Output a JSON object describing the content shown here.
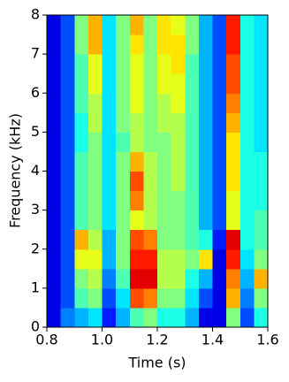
{
  "chart_data": {
    "type": "heatmap",
    "xlabel": "Time (s)",
    "ylabel": "Frequency (kHz)",
    "xlim": [
      0.8,
      1.6
    ],
    "ylim": [
      0,
      8
    ],
    "xticks": [
      0.8,
      {
        "value": 1,
        "label": "1.0"
      },
      1.2,
      1.4,
      1.6
    ],
    "yticks": [
      0,
      1,
      2,
      3,
      4,
      5,
      6,
      7,
      8
    ],
    "colormap": "jet",
    "zlim": [
      0,
      1
    ],
    "xbins": [
      0.8,
      0.85,
      0.9,
      0.95,
      1,
      1.05,
      1.1,
      1.15,
      1.2,
      1.25,
      1.3,
      1.35,
      1.4,
      1.45,
      1.5,
      1.55,
      1.6
    ],
    "ybins": [
      0,
      0.5,
      1,
      1.5,
      2,
      2.5,
      3,
      3.5,
      4,
      4.5,
      5,
      5.5,
      6,
      6.5,
      7,
      7.5,
      8
    ],
    "z": [
      [
        0.1,
        0.25,
        0.3,
        0.35,
        0.15,
        0.3,
        0.45,
        0.5,
        0.4,
        0.4,
        0.3,
        0.1,
        0.1,
        0.5,
        0.2,
        0.4
      ],
      [
        0.1,
        0.2,
        0.45,
        0.5,
        0.2,
        0.35,
        0.8,
        0.75,
        0.5,
        0.5,
        0.35,
        0.2,
        0.1,
        0.7,
        0.25,
        0.5
      ],
      [
        0.1,
        0.2,
        0.5,
        0.55,
        0.25,
        0.45,
        0.9,
        0.9,
        0.55,
        0.55,
        0.4,
        0.3,
        0.1,
        0.75,
        0.3,
        0.7
      ],
      [
        0.1,
        0.2,
        0.6,
        0.6,
        0.3,
        0.5,
        0.85,
        0.85,
        0.55,
        0.55,
        0.5,
        0.65,
        0.1,
        0.85,
        0.35,
        0.5
      ],
      [
        0.1,
        0.2,
        0.7,
        0.55,
        0.3,
        0.5,
        0.8,
        0.75,
        0.5,
        0.5,
        0.45,
        0.4,
        0.15,
        0.9,
        0.4,
        0.45
      ],
      [
        0.1,
        0.2,
        0.45,
        0.5,
        0.35,
        0.5,
        0.6,
        0.55,
        0.5,
        0.5,
        0.45,
        0.3,
        0.2,
        0.6,
        0.4,
        0.45
      ],
      [
        0.1,
        0.2,
        0.45,
        0.5,
        0.35,
        0.5,
        0.75,
        0.55,
        0.5,
        0.5,
        0.45,
        0.3,
        0.2,
        0.6,
        0.4,
        0.4
      ],
      [
        0.1,
        0.2,
        0.45,
        0.5,
        0.35,
        0.5,
        0.8,
        0.55,
        0.5,
        0.55,
        0.45,
        0.3,
        0.2,
        0.65,
        0.4,
        0.4
      ],
      [
        0.1,
        0.2,
        0.45,
        0.5,
        0.35,
        0.5,
        0.7,
        0.55,
        0.5,
        0.55,
        0.45,
        0.3,
        0.2,
        0.65,
        0.4,
        0.4
      ],
      [
        0.1,
        0.2,
        0.4,
        0.5,
        0.35,
        0.45,
        0.55,
        0.5,
        0.5,
        0.55,
        0.45,
        0.3,
        0.2,
        0.65,
        0.4,
        0.35
      ],
      [
        0.1,
        0.2,
        0.4,
        0.55,
        0.35,
        0.5,
        0.55,
        0.5,
        0.55,
        0.55,
        0.45,
        0.3,
        0.2,
        0.7,
        0.4,
        0.35
      ],
      [
        0.1,
        0.2,
        0.45,
        0.55,
        0.35,
        0.5,
        0.6,
        0.5,
        0.55,
        0.6,
        0.45,
        0.3,
        0.2,
        0.75,
        0.4,
        0.35
      ],
      [
        0.1,
        0.2,
        0.45,
        0.6,
        0.35,
        0.5,
        0.6,
        0.5,
        0.6,
        0.6,
        0.45,
        0.3,
        0.2,
        0.8,
        0.4,
        0.35
      ],
      [
        0.1,
        0.2,
        0.45,
        0.6,
        0.35,
        0.5,
        0.6,
        0.5,
        0.6,
        0.65,
        0.45,
        0.3,
        0.2,
        0.8,
        0.4,
        0.35
      ],
      [
        0.1,
        0.2,
        0.5,
        0.7,
        0.35,
        0.5,
        0.65,
        0.5,
        0.65,
        0.65,
        0.5,
        0.3,
        0.2,
        0.85,
        0.4,
        0.35
      ],
      [
        0.1,
        0.2,
        0.5,
        0.7,
        0.35,
        0.5,
        0.7,
        0.5,
        0.65,
        0.6,
        0.5,
        0.3,
        0.2,
        0.85,
        0.4,
        0.35
      ]
    ]
  }
}
